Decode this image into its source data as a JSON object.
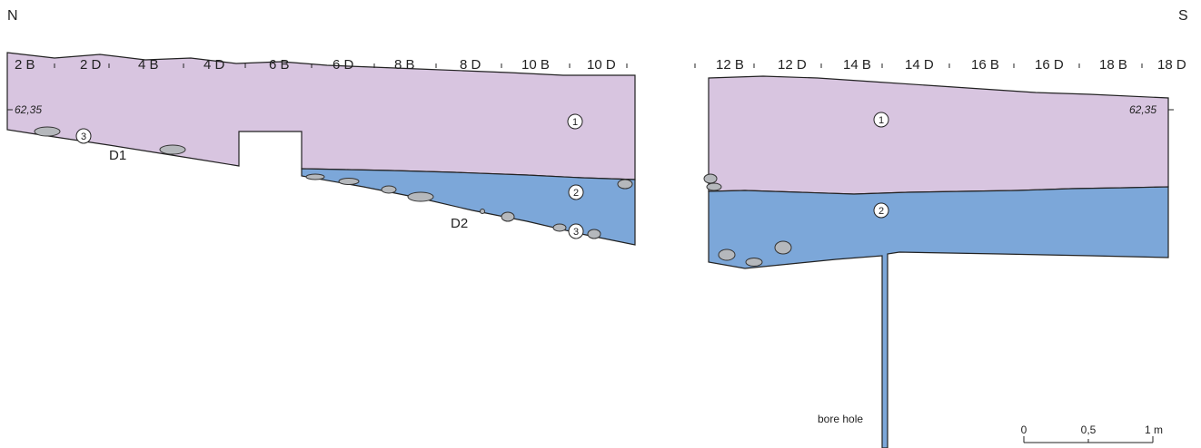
{
  "orientation": {
    "north": "N",
    "south": "S"
  },
  "colors": {
    "layer_1": "#d8c5e0",
    "layer_2": "#7ca7d9",
    "stone": "#b5b8bc",
    "outline": "#222222"
  },
  "squares": {
    "left": [
      "2 B",
      "2 D",
      "4 B",
      "4 D",
      "6 B",
      "6 D",
      "8 B",
      "8 D",
      "10 B",
      "10 D"
    ],
    "right": [
      "12 B",
      "12 D",
      "14 B",
      "14 D",
      "16 B",
      "16 D",
      "18 B",
      "18 D"
    ]
  },
  "elevation": {
    "left": "62,35",
    "right": "62,35"
  },
  "layers": {
    "left_1": "1",
    "left_2": "2",
    "left_3a": "3",
    "left_3b": "3",
    "right_1": "1",
    "right_2": "2"
  },
  "features": {
    "d1": "D1",
    "d2": "D2"
  },
  "bore_hole": "bore hole",
  "scale": {
    "tick_0": "0",
    "tick_half": "0,5",
    "tick_1": "1 m"
  }
}
